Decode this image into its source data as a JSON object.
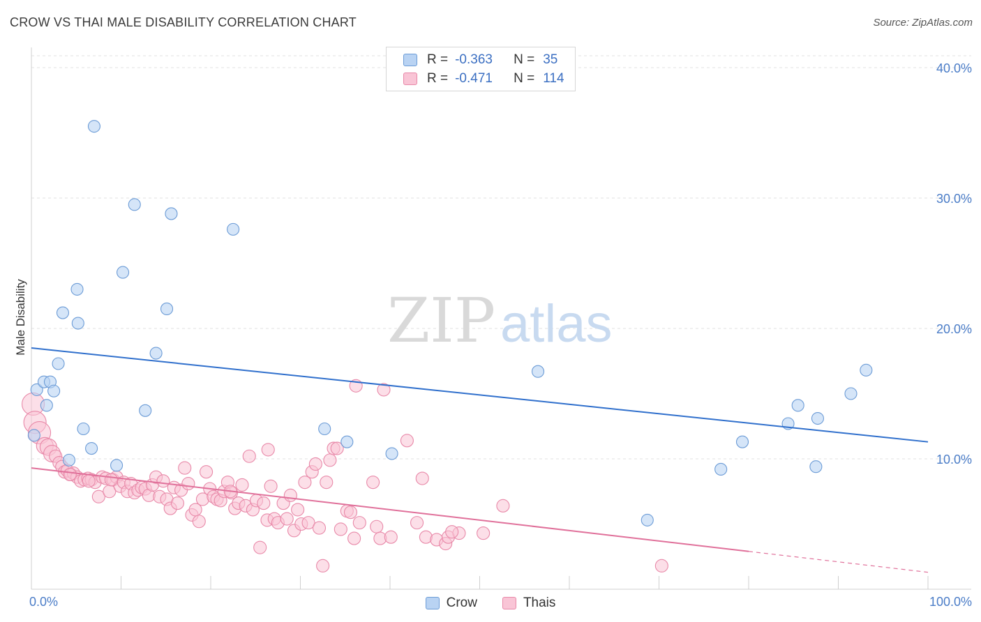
{
  "header": {
    "title": "CROW VS THAI MALE DISABILITY CORRELATION CHART",
    "source": "Source: ZipAtlas.com"
  },
  "watermark": {
    "part1": "ZIP",
    "part2": "atlas"
  },
  "legend_top": {
    "crow": {
      "r_label": "R =",
      "r_value": "-0.363",
      "n_label": "N =",
      "n_value": "35"
    },
    "thai": {
      "r_label": "R =",
      "r_value": "-0.471",
      "n_label": "N =",
      "n_value": "114"
    }
  },
  "legend_bottom": {
    "crow_label": "Crow",
    "thai_label": "Thais"
  },
  "colors": {
    "crow_fill": "#b9d3f3",
    "crow_stroke": "#6b9bd6",
    "crow_line": "#2f6fcc",
    "thai_fill": "#f9c5d6",
    "thai_stroke": "#e888a8",
    "thai_line": "#e0709a"
  },
  "chart_data": {
    "type": "scatter",
    "title": "CROW VS THAI MALE DISABILITY CORRELATION CHART",
    "xlabel": "",
    "ylabel": "Male Disability",
    "xlim": [
      0,
      100
    ],
    "ylim": [
      0,
      40
    ],
    "x_tick_labels": [
      "0.0%",
      "100.0%"
    ],
    "y_ticks": [
      10,
      20,
      30,
      40
    ],
    "y_tick_labels": [
      "10.0%",
      "20.0%",
      "30.0%",
      "40.0%"
    ],
    "grid": true,
    "legend": "top-center",
    "series": [
      {
        "name": "Crow",
        "points": [
          [
            7.0,
            35.5
          ],
          [
            11.5,
            29.5
          ],
          [
            15.6,
            28.8
          ],
          [
            22.5,
            27.6
          ],
          [
            10.2,
            24.3
          ],
          [
            5.1,
            23.0
          ],
          [
            3.5,
            21.2
          ],
          [
            15.1,
            21.5
          ],
          [
            5.2,
            20.4
          ],
          [
            13.9,
            18.1
          ],
          [
            3.0,
            17.3
          ],
          [
            0.6,
            15.3
          ],
          [
            1.4,
            15.9
          ],
          [
            2.1,
            15.9
          ],
          [
            2.5,
            15.2
          ],
          [
            1.7,
            14.1
          ],
          [
            12.7,
            13.7
          ],
          [
            5.8,
            12.3
          ],
          [
            0.3,
            11.8
          ],
          [
            6.7,
            10.8
          ],
          [
            4.2,
            9.9
          ],
          [
            9.5,
            9.5
          ],
          [
            32.7,
            12.3
          ],
          [
            35.2,
            11.3
          ],
          [
            40.2,
            10.4
          ],
          [
            56.5,
            16.7
          ],
          [
            76.9,
            9.2
          ],
          [
            79.3,
            11.3
          ],
          [
            85.5,
            14.1
          ],
          [
            84.4,
            12.7
          ],
          [
            87.7,
            13.1
          ],
          [
            91.4,
            15.0
          ],
          [
            93.1,
            16.8
          ],
          [
            87.5,
            9.4
          ],
          [
            68.7,
            5.3
          ]
        ],
        "trend": {
          "x": [
            0,
            100
          ],
          "y": [
            18.5,
            11.3
          ]
        }
      },
      {
        "name": "Thais",
        "points": [
          [
            0.2,
            14.2
          ],
          [
            0.4,
            12.8
          ],
          [
            0.9,
            12.0
          ],
          [
            1.5,
            11.0
          ],
          [
            1.9,
            10.9
          ],
          [
            2.3,
            10.4
          ],
          [
            2.7,
            10.2
          ],
          [
            3.1,
            9.7
          ],
          [
            3.4,
            9.4
          ],
          [
            3.7,
            9.0
          ],
          [
            4.0,
            9.1
          ],
          [
            4.4,
            8.8
          ],
          [
            4.7,
            8.9
          ],
          [
            5.1,
            8.6
          ],
          [
            5.5,
            8.3
          ],
          [
            5.9,
            8.4
          ],
          [
            6.3,
            8.5
          ],
          [
            6.7,
            8.4
          ],
          [
            7.1,
            8.2
          ],
          [
            7.5,
            7.1
          ],
          [
            7.9,
            8.6
          ],
          [
            8.3,
            8.5
          ],
          [
            8.7,
            7.5
          ],
          [
            9.1,
            8.4
          ],
          [
            9.5,
            8.6
          ],
          [
            9.9,
            7.9
          ],
          [
            10.3,
            8.2
          ],
          [
            10.7,
            7.5
          ],
          [
            11.1,
            8.1
          ],
          [
            11.5,
            7.4
          ],
          [
            11.9,
            7.6
          ],
          [
            12.3,
            7.8
          ],
          [
            12.7,
            7.7
          ],
          [
            13.1,
            7.2
          ],
          [
            13.5,
            8.0
          ],
          [
            13.9,
            8.6
          ],
          [
            14.3,
            7.1
          ],
          [
            14.7,
            8.3
          ],
          [
            15.1,
            6.9
          ],
          [
            15.5,
            6.2
          ],
          [
            15.9,
            7.8
          ],
          [
            16.3,
            6.6
          ],
          [
            16.7,
            7.6
          ],
          [
            17.1,
            9.3
          ],
          [
            17.5,
            8.1
          ],
          [
            17.9,
            5.7
          ],
          [
            18.3,
            6.1
          ],
          [
            18.7,
            5.2
          ],
          [
            19.1,
            6.9
          ],
          [
            19.5,
            9.0
          ],
          [
            19.9,
            7.7
          ],
          [
            20.3,
            7.1
          ],
          [
            20.7,
            6.9
          ],
          [
            21.1,
            6.8
          ],
          [
            21.5,
            7.5
          ],
          [
            21.9,
            8.2
          ],
          [
            22.3,
            7.4
          ],
          [
            22.7,
            6.2
          ],
          [
            23.1,
            6.6
          ],
          [
            23.5,
            8.0
          ],
          [
            23.9,
            6.4
          ],
          [
            24.3,
            10.2
          ],
          [
            24.7,
            6.1
          ],
          [
            25.1,
            6.8
          ],
          [
            25.5,
            3.2
          ],
          [
            25.9,
            6.6
          ],
          [
            26.3,
            5.3
          ],
          [
            26.7,
            7.9
          ],
          [
            27.1,
            5.4
          ],
          [
            27.5,
            5.1
          ],
          [
            28.1,
            6.6
          ],
          [
            28.5,
            5.4
          ],
          [
            28.9,
            7.2
          ],
          [
            29.3,
            4.5
          ],
          [
            29.7,
            6.1
          ],
          [
            30.1,
            5.0
          ],
          [
            30.5,
            8.2
          ],
          [
            30.9,
            5.1
          ],
          [
            31.3,
            9.0
          ],
          [
            31.7,
            9.6
          ],
          [
            32.1,
            4.7
          ],
          [
            32.5,
            1.8
          ],
          [
            32.9,
            8.2
          ],
          [
            33.3,
            9.9
          ],
          [
            33.7,
            10.8
          ],
          [
            34.1,
            10.8
          ],
          [
            34.5,
            4.6
          ],
          [
            35.2,
            6.0
          ],
          [
            35.6,
            5.9
          ],
          [
            36.0,
            3.9
          ],
          [
            36.2,
            15.6
          ],
          [
            36.6,
            5.1
          ],
          [
            38.1,
            8.2
          ],
          [
            38.5,
            4.8
          ],
          [
            38.9,
            3.9
          ],
          [
            39.3,
            15.3
          ],
          [
            40.1,
            4.0
          ],
          [
            41.9,
            11.4
          ],
          [
            43.0,
            5.1
          ],
          [
            43.6,
            8.5
          ],
          [
            44.0,
            4.0
          ],
          [
            45.2,
            3.8
          ],
          [
            46.2,
            3.5
          ],
          [
            46.5,
            4.0
          ],
          [
            47.7,
            4.3
          ],
          [
            46.9,
            4.4
          ],
          [
            50.4,
            4.3
          ],
          [
            52.6,
            6.4
          ],
          [
            70.3,
            1.8
          ],
          [
            22.2,
            7.5
          ],
          [
            4.3,
            8.8
          ],
          [
            6.4,
            8.3
          ],
          [
            8.9,
            8.4
          ],
          [
            26.4,
            10.7
          ]
        ],
        "trend": {
          "x": [
            0,
            80
          ],
          "y": [
            9.3,
            2.9
          ]
        },
        "trend_dashed": {
          "x": [
            80,
            100
          ],
          "y": [
            2.9,
            1.3
          ]
        }
      }
    ]
  }
}
